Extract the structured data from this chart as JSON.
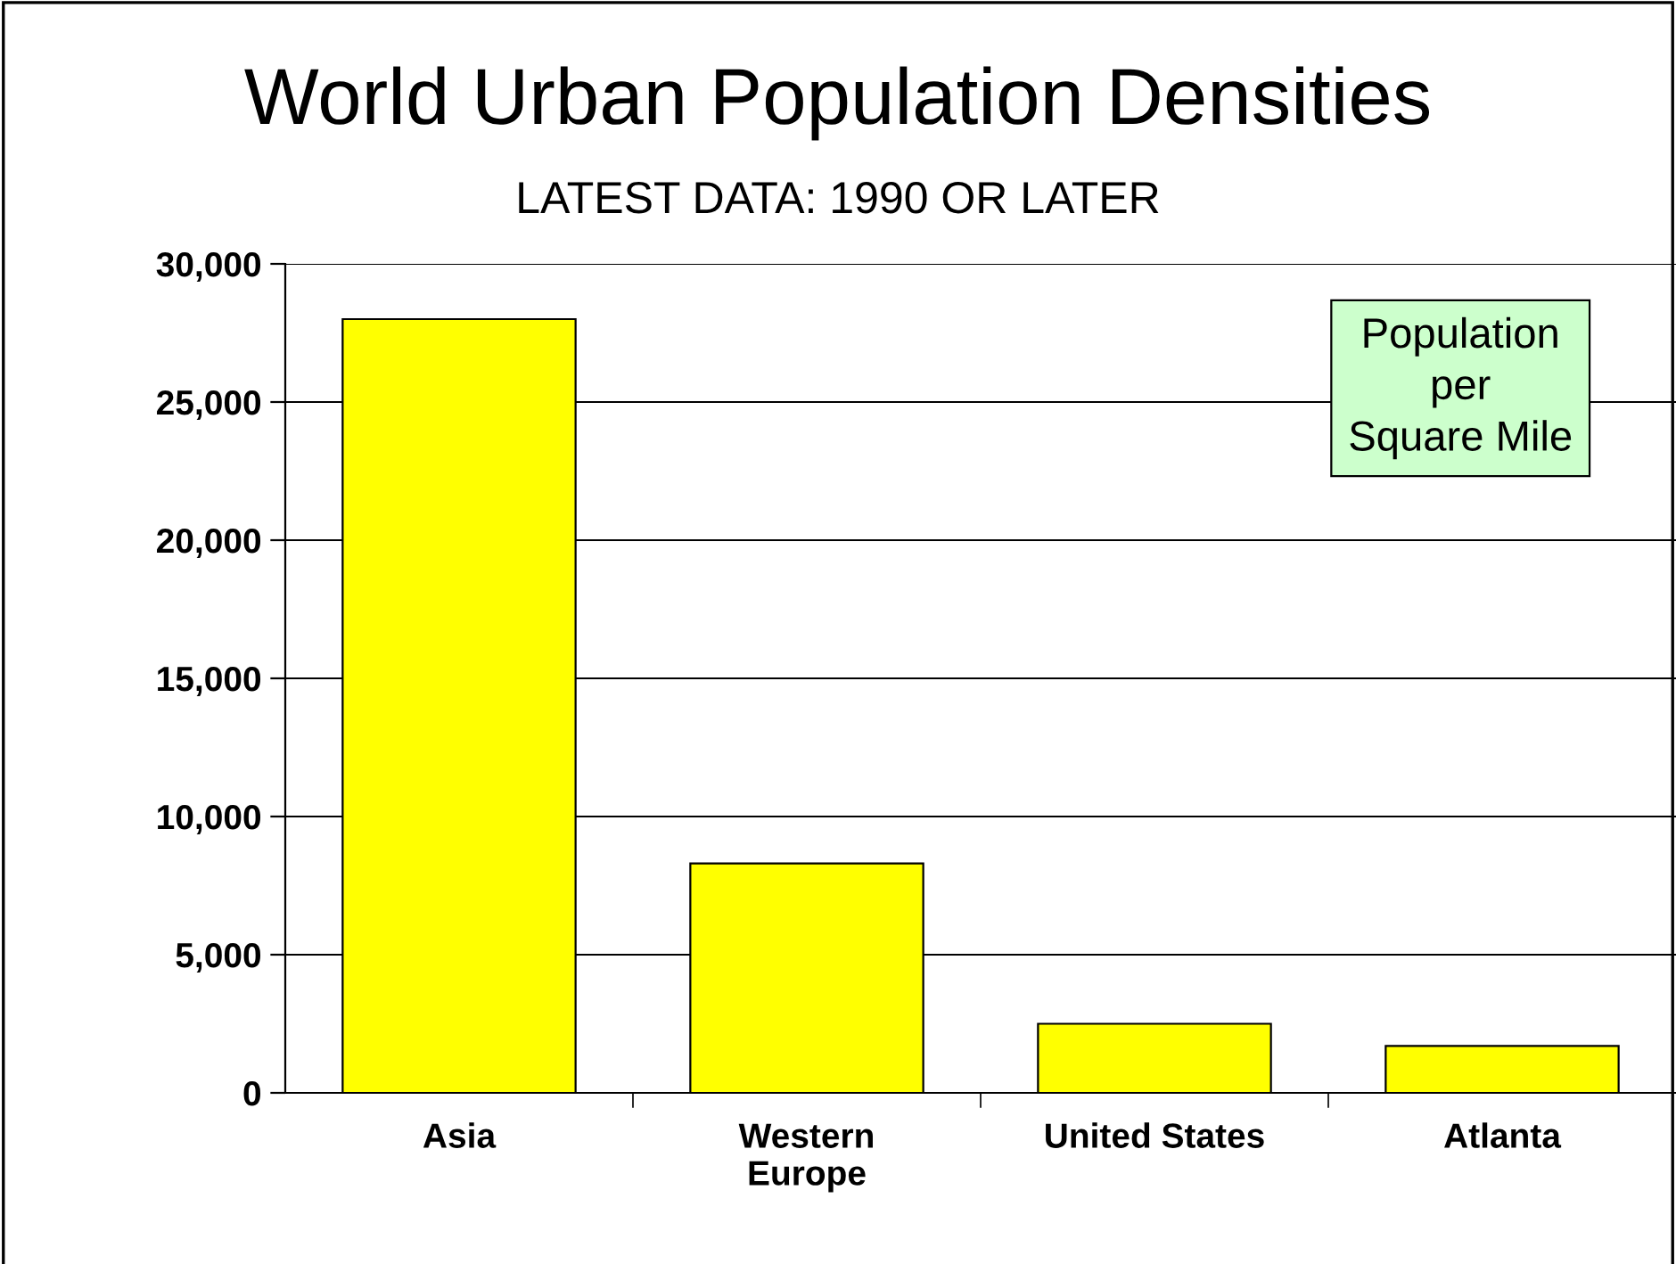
{
  "chart_data": {
    "type": "bar",
    "title": "World Urban Population Densities",
    "subtitle": "LATEST DATA: 1990 OR LATER",
    "categories": [
      "Asia",
      "Western\nEurope",
      "United States",
      "Atlanta"
    ],
    "values": [
      28000,
      8300,
      2500,
      1700
    ],
    "color": "#ffff00",
    "ylim": [
      0,
      30000
    ],
    "yticks": [
      {
        "value": 0,
        "label": "0"
      },
      {
        "value": 5000,
        "label": "5,000"
      },
      {
        "value": 10000,
        "label": "10,000"
      },
      {
        "value": 15000,
        "label": "15,000"
      },
      {
        "value": 20000,
        "label": "20,000"
      },
      {
        "value": 25000,
        "label": "25,000"
      },
      {
        "value": 30000,
        "label": "30,000"
      }
    ],
    "grid": "y",
    "annotations": [
      "Population\nper\nSquare Mile"
    ]
  }
}
